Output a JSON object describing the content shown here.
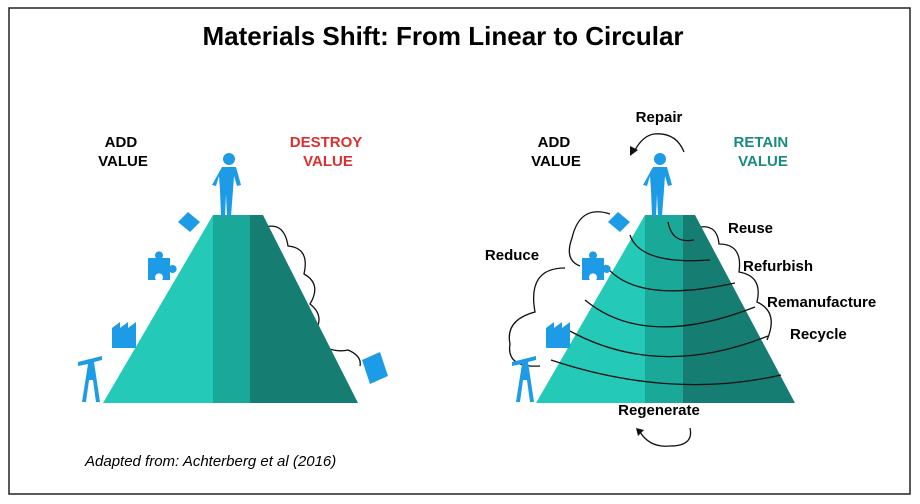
{
  "header": {
    "title": "Materials Shift: From Linear to Circular"
  },
  "linear": {
    "left_label": [
      "ADD",
      "VALUE"
    ],
    "right_label": [
      "DESTROY",
      "VALUE"
    ]
  },
  "circular": {
    "left_label": [
      "ADD",
      "VALUE"
    ],
    "right_label": [
      "RETAIN",
      "VALUE"
    ],
    "loops": {
      "top": "Repair",
      "left": "Reduce",
      "bottom": "Regenerate",
      "right": [
        "Reuse",
        "Refurbish",
        "Remanufacture",
        "Recycle"
      ]
    }
  },
  "caption": "Adapted from: Achterberg et al (2016)"
}
